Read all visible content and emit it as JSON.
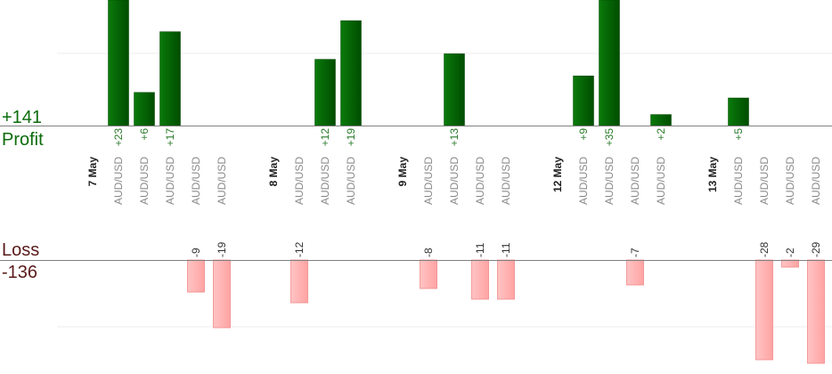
{
  "chart_data": {
    "type": "bar",
    "summary": {
      "profit_total": "+141",
      "profit_label": "Profit",
      "loss_label": "Loss",
      "loss_total": "-136"
    },
    "colors": {
      "profit": "#006400",
      "loss": "#ffb3b3",
      "profit_text": "#0b6b0b",
      "loss_text": "#5a1a1a"
    },
    "columns": [
      {
        "kind": "date",
        "label": "7 May"
      },
      {
        "kind": "trade",
        "pair": "AUD/USD",
        "value": 23
      },
      {
        "kind": "trade",
        "pair": "AUD/USD",
        "value": 6
      },
      {
        "kind": "trade",
        "pair": "AUD/USD",
        "value": 17
      },
      {
        "kind": "trade",
        "pair": "AUD/USD",
        "value": -9
      },
      {
        "kind": "trade",
        "pair": "AUD/USD",
        "value": -19
      },
      {
        "kind": "spacer"
      },
      {
        "kind": "date",
        "label": "8 May"
      },
      {
        "kind": "trade",
        "pair": "AUD/USD",
        "value": -12
      },
      {
        "kind": "trade",
        "pair": "AUD/USD",
        "value": 12
      },
      {
        "kind": "trade",
        "pair": "AUD/USD",
        "value": 19
      },
      {
        "kind": "spacer"
      },
      {
        "kind": "date",
        "label": "9 May"
      },
      {
        "kind": "trade",
        "pair": "AUD/USD",
        "value": -8
      },
      {
        "kind": "trade",
        "pair": "AUD/USD",
        "value": 13
      },
      {
        "kind": "trade",
        "pair": "AUD/USD",
        "value": -11
      },
      {
        "kind": "trade",
        "pair": "AUD/USD",
        "value": -11
      },
      {
        "kind": "spacer"
      },
      {
        "kind": "date",
        "label": "12 May"
      },
      {
        "kind": "trade",
        "pair": "AUD/USD",
        "value": 9
      },
      {
        "kind": "trade",
        "pair": "AUD/USD",
        "value": 35
      },
      {
        "kind": "trade",
        "pair": "AUD/USD",
        "value": -7
      },
      {
        "kind": "trade",
        "pair": "AUD/USD",
        "value": 2
      },
      {
        "kind": "spacer"
      },
      {
        "kind": "date",
        "label": "13 May"
      },
      {
        "kind": "trade",
        "pair": "AUD/USD",
        "value": 5
      },
      {
        "kind": "trade",
        "pair": "AUD/USD",
        "value": -28
      },
      {
        "kind": "trade",
        "pair": "AUD/USD",
        "value": -2
      },
      {
        "kind": "trade",
        "pair": "AUD/USD",
        "value": -29
      }
    ]
  }
}
